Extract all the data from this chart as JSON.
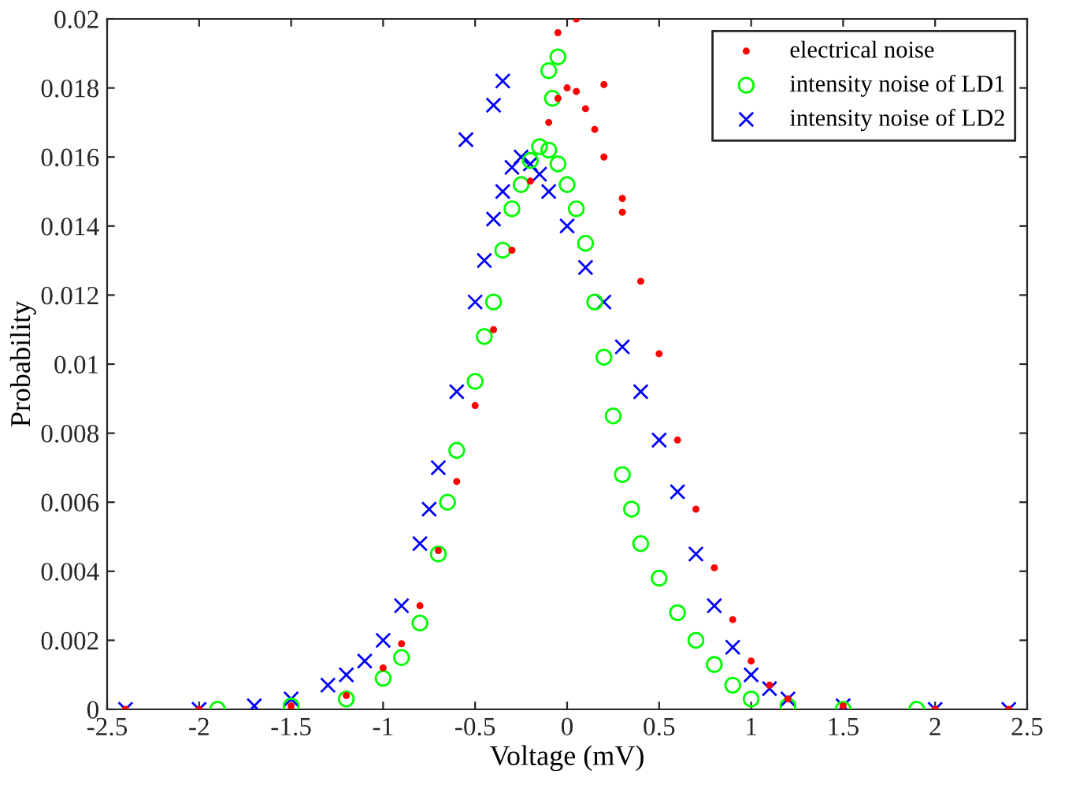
{
  "chart_data": {
    "type": "scatter",
    "xlabel": "Voltage (mV)",
    "ylabel": "Probability",
    "xlim": [
      -2.5,
      2.5
    ],
    "ylim": [
      0,
      0.02
    ],
    "xticks": [
      -2.5,
      -2,
      -1.5,
      -1,
      -0.5,
      0,
      0.5,
      1,
      1.5,
      2,
      2.5
    ],
    "yticks": [
      0,
      0.002,
      0.004,
      0.006,
      0.008,
      0.01,
      0.012,
      0.014,
      0.016,
      0.018,
      0.02
    ],
    "grid": false,
    "legend": "top right",
    "series": [
      {
        "name": "electrical noise",
        "color": "#ff0000",
        "marker": "point",
        "x": [
          -2.4,
          -2.0,
          -1.5,
          -1.2,
          -1.0,
          -0.9,
          -0.8,
          -0.7,
          -0.6,
          -0.5,
          -0.4,
          -0.3,
          -0.2,
          -0.1,
          -0.05,
          0,
          0.05,
          0.1,
          0.15,
          0.2,
          0.3,
          0.4,
          0.5,
          0.6,
          0.7,
          0.8,
          0.9,
          1.0,
          1.1,
          1.2,
          1.5,
          2.0,
          2.4,
          0.05,
          -0.05,
          0.2,
          0.3
        ],
        "values": [
          0,
          0,
          0.0001,
          0.0004,
          0.0012,
          0.0019,
          0.003,
          0.0046,
          0.0066,
          0.0088,
          0.011,
          0.0133,
          0.0153,
          0.017,
          0.0177,
          0.018,
          0.0179,
          0.0174,
          0.0168,
          0.016,
          0.0144,
          0.0124,
          0.0103,
          0.0078,
          0.0058,
          0.0041,
          0.0026,
          0.0014,
          0.0007,
          0.0003,
          0.0001,
          0,
          0,
          0.02,
          0.0196,
          0.0181,
          0.0148
        ]
      },
      {
        "name": "intensity noise of LD1",
        "color": "#00ff00",
        "marker": "circle",
        "x": [
          -1.9,
          -1.5,
          -1.2,
          -1.0,
          -0.9,
          -0.8,
          -0.7,
          -0.65,
          -0.6,
          -0.5,
          -0.45,
          -0.4,
          -0.35,
          -0.3,
          -0.25,
          -0.2,
          -0.15,
          -0.1,
          -0.05,
          0,
          0.05,
          0.1,
          0.15,
          0.2,
          0.25,
          0.3,
          0.35,
          0.4,
          0.5,
          0.6,
          0.7,
          0.8,
          0.9,
          1.0,
          1.2,
          1.5,
          1.9,
          -0.05,
          -0.1,
          -0.08
        ],
        "values": [
          0,
          0.0001,
          0.0003,
          0.0009,
          0.0015,
          0.0025,
          0.0045,
          0.006,
          0.0075,
          0.0095,
          0.0108,
          0.0118,
          0.0133,
          0.0145,
          0.0152,
          0.0159,
          0.0163,
          0.0162,
          0.0158,
          0.0152,
          0.0145,
          0.0135,
          0.0118,
          0.0102,
          0.0085,
          0.0068,
          0.0058,
          0.0048,
          0.0038,
          0.0028,
          0.002,
          0.0013,
          0.0007,
          0.0003,
          0.0001,
          0,
          0,
          0.0189,
          0.0185,
          0.0177
        ]
      },
      {
        "name": "intensity noise of LD2",
        "color": "#0000ff",
        "marker": "cross",
        "x": [
          -2.4,
          -2.0,
          -1.7,
          -1.5,
          -1.3,
          -1.2,
          -1.1,
          -1.0,
          -0.9,
          -0.8,
          -0.75,
          -0.7,
          -0.6,
          -0.5,
          -0.45,
          -0.4,
          -0.35,
          -0.3,
          -0.25,
          -0.2,
          -0.15,
          -0.1,
          0,
          0.1,
          0.2,
          0.3,
          0.4,
          0.5,
          0.6,
          0.7,
          0.8,
          0.9,
          1.0,
          1.1,
          1.2,
          1.5,
          2.0,
          2.4,
          -0.4,
          -0.35,
          -0.55
        ],
        "values": [
          0,
          0,
          0.0001,
          0.0003,
          0.0007,
          0.001,
          0.0014,
          0.002,
          0.003,
          0.0048,
          0.0058,
          0.007,
          0.0092,
          0.0118,
          0.013,
          0.0142,
          0.015,
          0.0157,
          0.016,
          0.0158,
          0.0155,
          0.015,
          0.014,
          0.0128,
          0.0118,
          0.0105,
          0.0092,
          0.0078,
          0.0063,
          0.0045,
          0.003,
          0.0018,
          0.001,
          0.0006,
          0.0003,
          0.0001,
          0,
          0,
          0.0175,
          0.0182,
          0.0165
        ]
      }
    ]
  }
}
